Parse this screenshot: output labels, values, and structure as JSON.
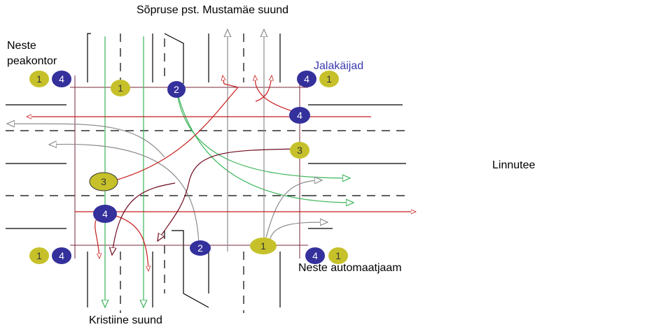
{
  "labels": {
    "top_street": "Sõpruse pst.  Mustamäe suund",
    "neste_hq": [
      "Neste",
      "peakontor"
    ],
    "pedestrians": "Jalakäijad",
    "linnutee": "Linnutee",
    "neste_station": "Neste automaatjaam",
    "kristiine": "Kristiine suund"
  },
  "colors": {
    "lane": "#000000",
    "olive": "#c6c12a",
    "navy": "#34309c",
    "green": "#3cb55a",
    "red": "#c81e1e",
    "maroon": "#6e0a1e",
    "gray": "#8c8c8c",
    "ped_line": "#7a2a3a"
  },
  "badges": {
    "nw_pair": [
      "1",
      "4"
    ],
    "ne_pair": [
      "4",
      "1"
    ],
    "sw_pair": [
      "1",
      "4"
    ],
    "se_pair": [
      "4",
      "1"
    ],
    "crosswalk_n_west": "1",
    "crosswalk_n_east": "2",
    "crosswalk_s_west": "2",
    "crosswalk_s_east": "1",
    "east_ped": "4",
    "east_mid": "3",
    "west_mid": "3",
    "west_ped": "4"
  }
}
